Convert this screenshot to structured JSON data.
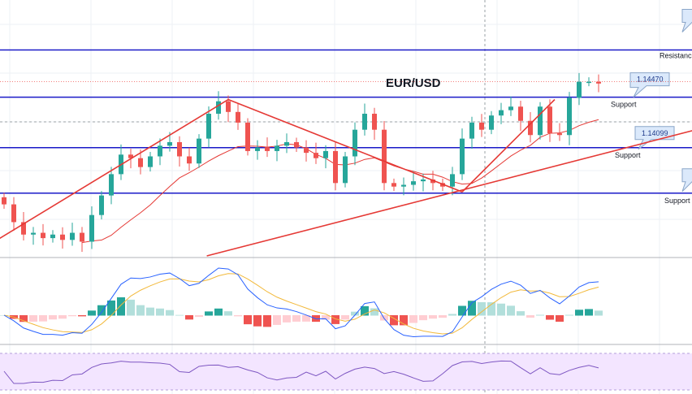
{
  "chart_data": {
    "type": "candlestick",
    "title": "EUR/USD",
    "ylim": [
      1.1349,
      1.1493
    ],
    "colors": {
      "up": "#26a69a",
      "down": "#ef5350",
      "level": "#1a1ac8",
      "trend": "#e53935",
      "ma": "#e53935",
      "macd": "#2962ff",
      "signal": "#f2b93b",
      "rsi": "#7e57c2",
      "rsi_bg": "#f3e5ff"
    },
    "closes": [
      1.1378,
      1.1368,
      1.1361,
      1.1362,
      1.1359,
      1.1361,
      1.1358,
      1.1362,
      1.1357,
      1.1372,
      1.1383,
      1.1395,
      1.1406,
      1.1404,
      1.1399,
      1.1405,
      1.1411,
      1.1413,
      1.1405,
      1.1401,
      1.1415,
      1.1429,
      1.1436,
      1.143,
      1.1424,
      1.1408,
      1.141,
      1.1408,
      1.1411,
      1.1413,
      1.141,
      1.1407,
      1.1404,
      1.1408,
      1.139,
      1.1405,
      1.142,
      1.1429,
      1.142,
      1.139,
      1.1388,
      1.1389,
      1.1391,
      1.1392,
      1.139,
      1.1388,
      1.1395,
      1.1415,
      1.1424,
      1.142,
      1.1428,
      1.1431,
      1.1433,
      1.1425,
      1.1417,
      1.1433,
      1.1418,
      1.1417,
      1.1438,
      1.1447,
      1.1447,
      1.1446
    ],
    "levels": [
      {
        "price": 1.14649,
        "label": "Resistance",
        "tag": ""
      },
      {
        "price": 1.14383,
        "label": "Support",
        "tag": "1.14470"
      },
      {
        "price": 1.14099,
        "label": "Support",
        "tag": "1.14099"
      },
      {
        "price": 1.13843,
        "label": "Support",
        "tag": ""
      }
    ],
    "current_price": 1.1447,
    "trendlines": [
      {
        "from": [
          -1,
          1.1357
        ],
        "to": [
          23,
          1.1437
        ]
      },
      {
        "from": [
          23,
          1.1437
        ],
        "to": [
          47,
          1.1385
        ]
      },
      {
        "from": [
          47,
          1.1385
        ],
        "to": [
          56.5,
          1.1437
        ]
      },
      {
        "from": [
          20.8,
          1.1349
        ],
        "to": [
          71,
          1.142
        ]
      }
    ],
    "indicators": [
      "MA",
      "MACD",
      "RSI"
    ]
  }
}
